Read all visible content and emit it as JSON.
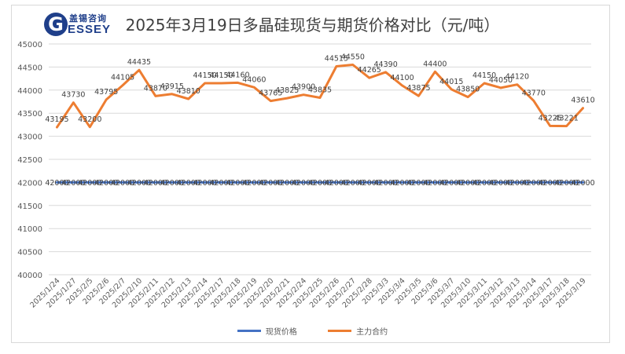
{
  "logo": {
    "cn": "盖锡咨询",
    "en": "ESSEY",
    "letter": "G"
  },
  "chart_data": {
    "type": "line",
    "title": "2025年3月19日多晶硅现货与期货价格对比（元/吨）",
    "categories": [
      "2025/1/24",
      "2025/1/27",
      "2025/2/5",
      "2025/2/6",
      "2025/2/7",
      "2025/2/10",
      "2025/2/11",
      "2025/2/12",
      "2025/2/13",
      "2025/2/14",
      "2025/2/17",
      "2025/2/18",
      "2025/2/19",
      "2025/2/20",
      "2025/2/21",
      "2025/2/24",
      "2025/2/25",
      "2025/2/26",
      "2025/2/27",
      "2025/2/28",
      "2025/3/3",
      "2025/3/4",
      "2025/3/5",
      "2025/3/6",
      "2025/3/7",
      "2025/3/10",
      "2025/3/11",
      "2025/3/12",
      "2025/3/13",
      "2025/3/14",
      "2025/3/17",
      "2025/3/18",
      "2025/3/19"
    ],
    "series": [
      {
        "name": "现货价格",
        "color": "#4472c4",
        "values": [
          42000,
          42000,
          42000,
          42000,
          42000,
          42000,
          42000,
          42000,
          42000,
          42000,
          42000,
          42000,
          42000,
          42000,
          42000,
          42000,
          42000,
          42000,
          42000,
          42000,
          42000,
          42000,
          42000,
          42000,
          42000,
          42000,
          42000,
          42000,
          42000,
          42000,
          42000,
          42000,
          42000
        ]
      },
      {
        "name": "主力合约",
        "color": "#ed7d31",
        "values": [
          43195,
          43730,
          43200,
          43795,
          44105,
          44435,
          43870,
          43915,
          43810,
          44150,
          44150,
          44160,
          44060,
          43765,
          43825,
          43900,
          43835,
          44515,
          44550,
          44265,
          44390,
          44100,
          43875,
          44400,
          44015,
          43850,
          44150,
          44050,
          44120,
          43770,
          43225,
          43221,
          43610
        ]
      }
    ],
    "yticks": [
      40000,
      40500,
      41000,
      41500,
      42000,
      42500,
      43000,
      43500,
      44000,
      44500,
      45000
    ],
    "ylim": [
      40000,
      45000
    ],
    "grid": true,
    "legend_position": "bottom"
  }
}
